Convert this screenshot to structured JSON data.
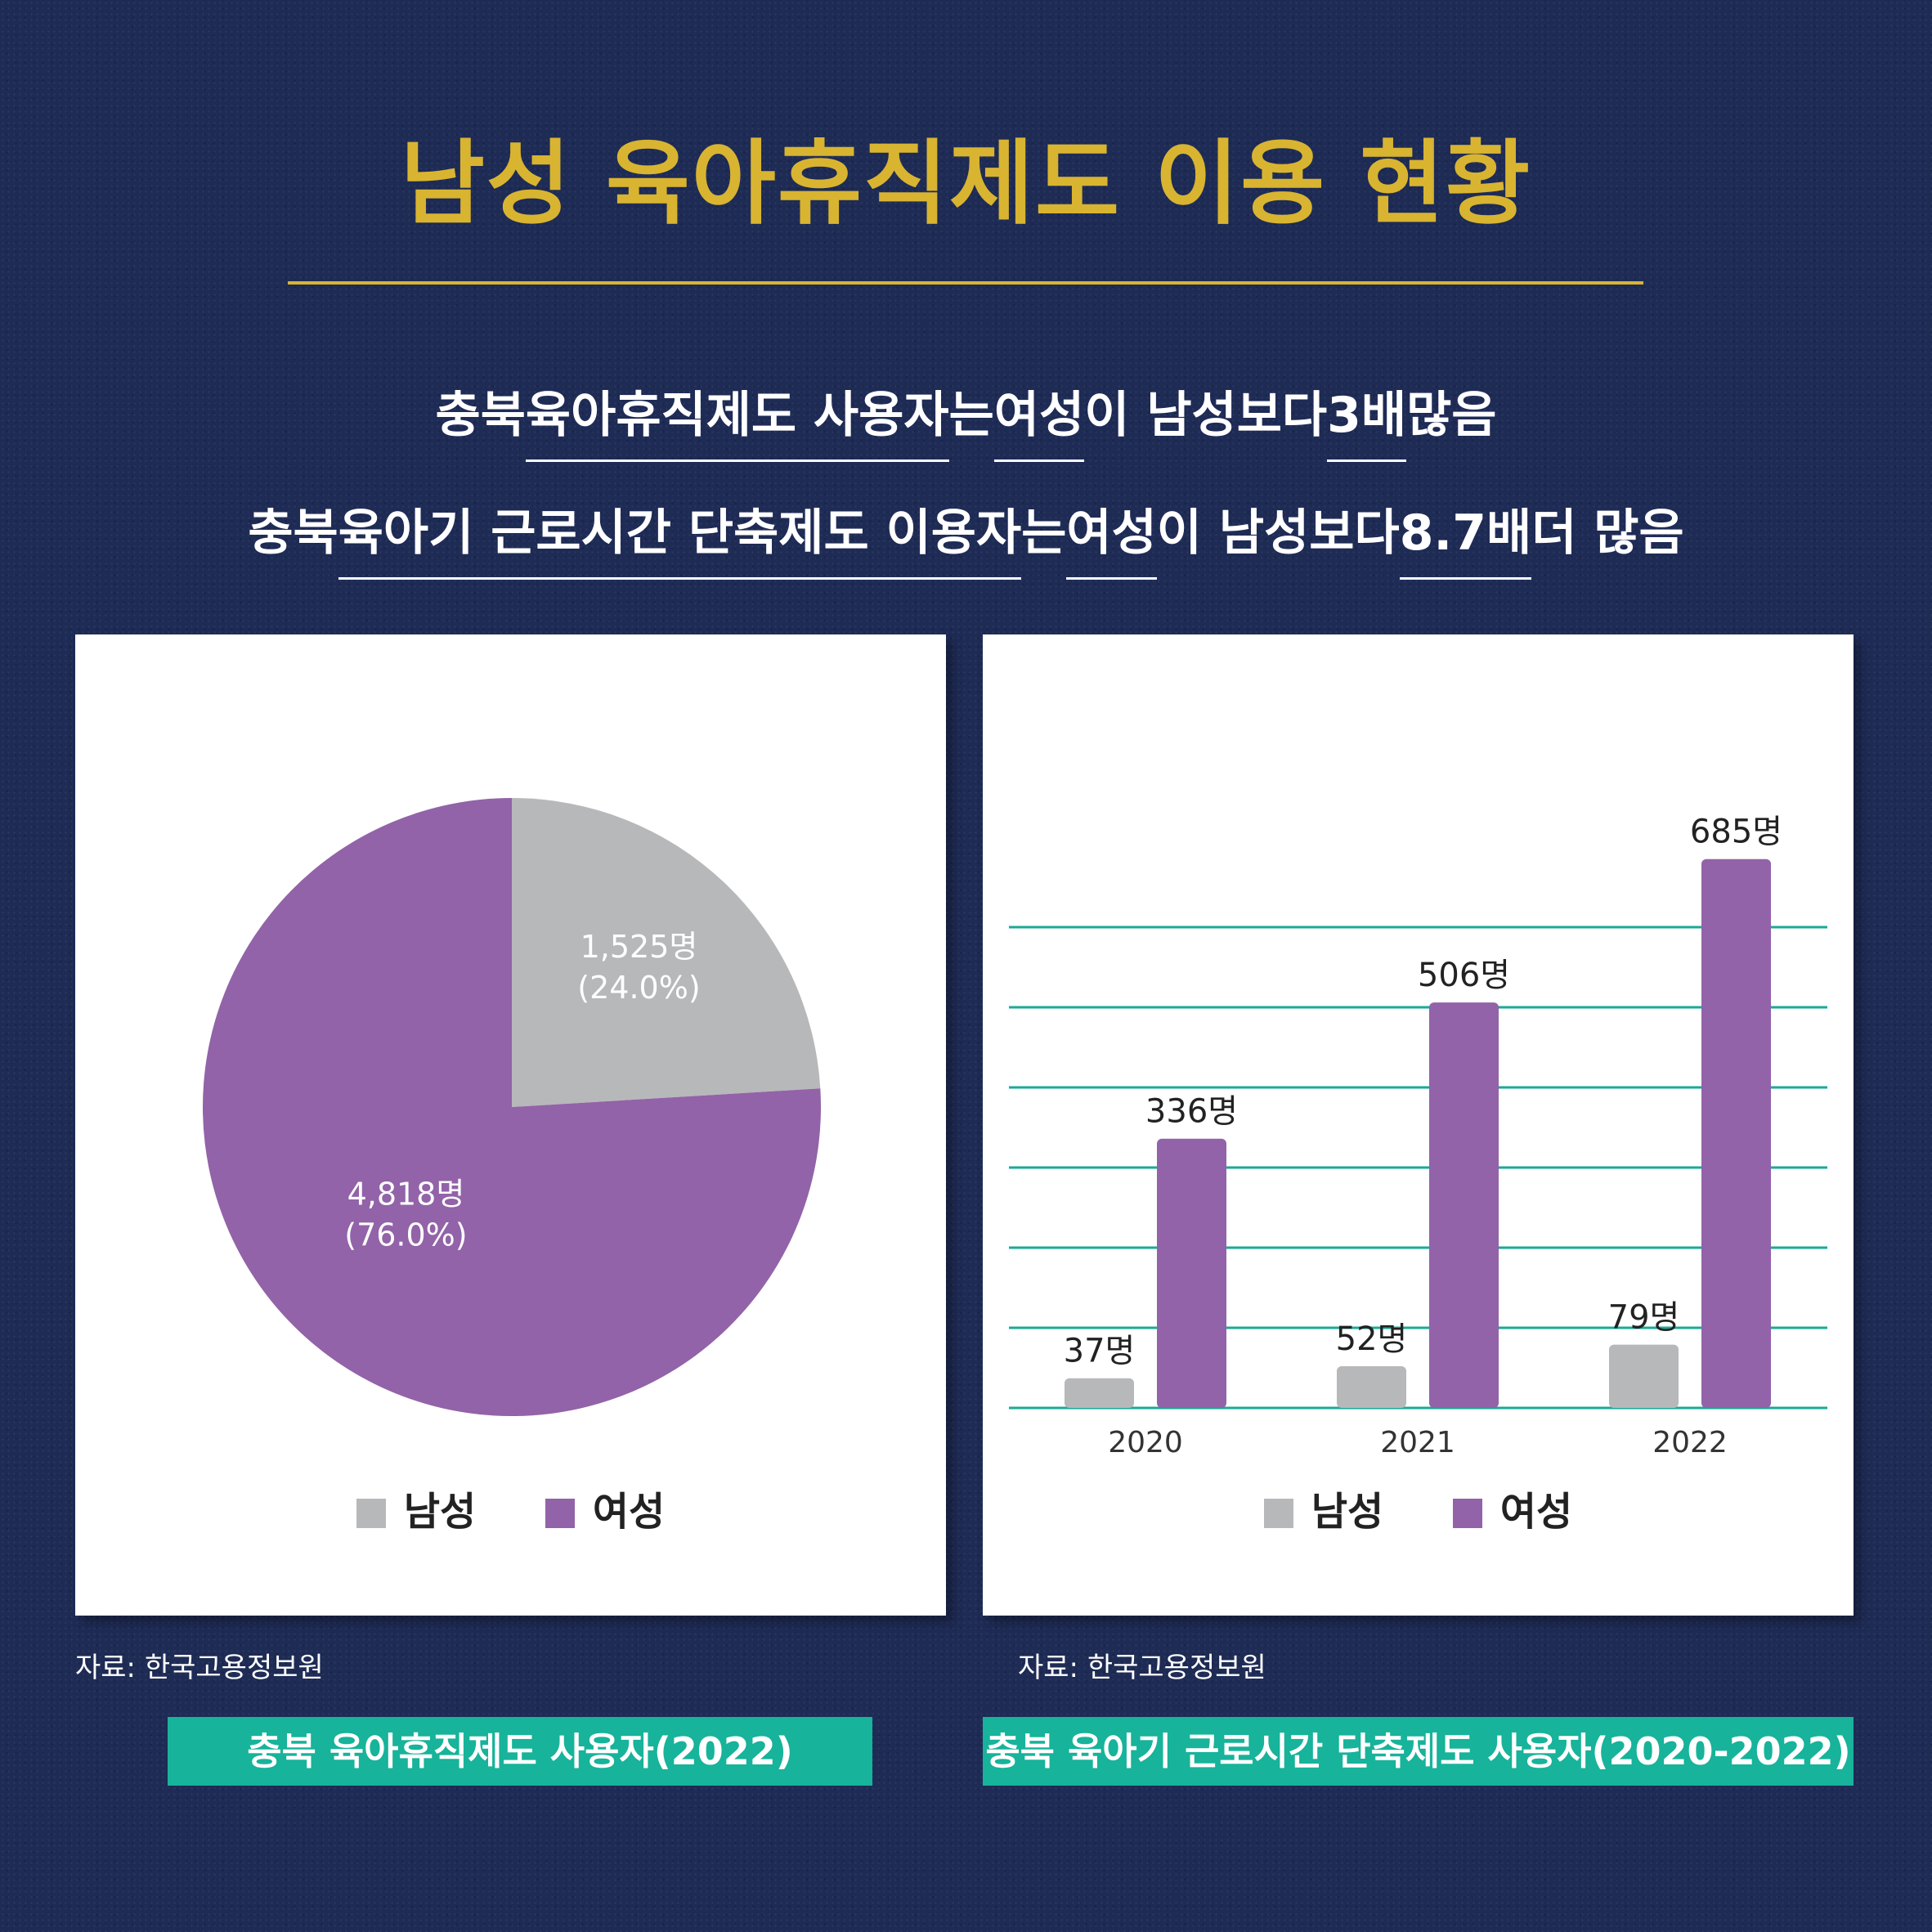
{
  "header": {
    "title": "남성 육아휴직제도 이용 현황",
    "line1": {
      "p1": "충북 ",
      "u1": "육아휴직제도 사용자",
      "p2": "는 ",
      "u2": "여성",
      "p3": "이 남성보다 ",
      "u3": "3배",
      "p4": " 많음"
    },
    "line2": {
      "p1": "충북 ",
      "u1": "육아기 근로시간 단축제도 이용자",
      "p2": "는 ",
      "u2": "여성",
      "p3": "이 남성보다 ",
      "u3": "8.7배",
      "p4": " 더 많음"
    }
  },
  "colors": {
    "male": "#b7b8ba",
    "female": "#9263a8",
    "grid": "#1aaa97",
    "title": "#d8b431",
    "caption_bg": "#17b39a"
  },
  "legend": {
    "male": "남성",
    "female": "여성"
  },
  "left": {
    "source": "자료: 한국고용정보원",
    "caption": "충북 육아휴직제도 사용자(2022)"
  },
  "right": {
    "source": "자료: 한국고용정보원",
    "caption": "충북 육아기 근로시간 단축제도 사용자(2020-2022)"
  },
  "chart_data": [
    {
      "type": "pie",
      "slices": [
        {
          "name": "남성",
          "value": 1525,
          "percent": 24.0,
          "label": "1,525명",
          "pct_label": "(24.0%)"
        },
        {
          "name": "여성",
          "value": 4818,
          "percent": 76.0,
          "label": "4,818명",
          "pct_label": "(76.0%)"
        }
      ],
      "legend_placement": "bottom"
    },
    {
      "type": "bar",
      "categories": [
        "2020",
        "2021",
        "2022"
      ],
      "series": [
        {
          "name": "남성",
          "values": [
            37,
            52,
            79
          ],
          "labels": [
            "37명",
            "52명",
            "79명"
          ]
        },
        {
          "name": "여성",
          "values": [
            336,
            506,
            685
          ],
          "labels": [
            "336명",
            "506명",
            "685명"
          ]
        }
      ],
      "ylim": [
        0,
        750
      ],
      "grid": true,
      "legend_placement": "bottom"
    }
  ]
}
